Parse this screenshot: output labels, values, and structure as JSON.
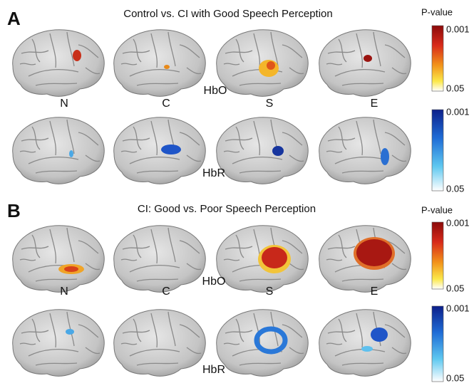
{
  "panels": [
    {
      "label": "A",
      "title": "Control vs. CI with Good Speech Perception",
      "legend_title": "P-value",
      "hbo_scale": {
        "max": "0.001",
        "min": "0.05"
      },
      "hbr_scale": {
        "max": "0.001",
        "min": "0.05"
      },
      "conditions": [
        "N",
        "C",
        "S",
        "E"
      ],
      "hbo_label": "HbO",
      "hbr_label": "HbR"
    },
    {
      "label": "B",
      "title": "CI: Good vs. Poor Speech Perception",
      "legend_title": "P-value",
      "hbo_scale": {
        "max": "0.001",
        "min": "0.05"
      },
      "hbr_scale": {
        "max": "0.001",
        "min": "0.05"
      },
      "conditions": [
        "N",
        "C",
        "S",
        "E"
      ],
      "hbo_label": "HbO",
      "hbr_label": "HbR"
    }
  ]
}
